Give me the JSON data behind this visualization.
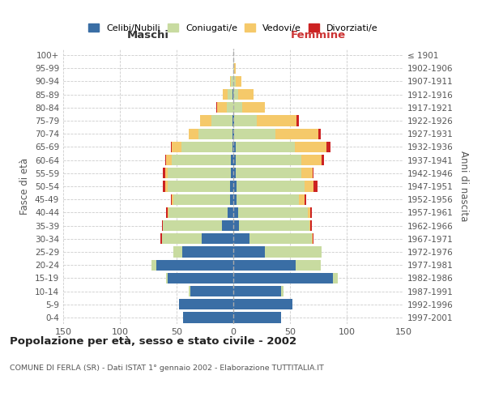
{
  "age_groups": [
    "0-4",
    "5-9",
    "10-14",
    "15-19",
    "20-24",
    "25-29",
    "30-34",
    "35-39",
    "40-44",
    "45-49",
    "50-54",
    "55-59",
    "60-64",
    "65-69",
    "70-74",
    "75-79",
    "80-84",
    "85-89",
    "90-94",
    "95-99",
    "100+"
  ],
  "birth_years": [
    "1997-2001",
    "1992-1996",
    "1987-1991",
    "1982-1986",
    "1977-1981",
    "1972-1976",
    "1967-1971",
    "1962-1966",
    "1957-1961",
    "1952-1956",
    "1947-1951",
    "1942-1946",
    "1937-1941",
    "1932-1936",
    "1927-1931",
    "1922-1926",
    "1917-1921",
    "1912-1916",
    "1907-1911",
    "1902-1906",
    "≤ 1901"
  ],
  "male_celibi": [
    44,
    48,
    38,
    58,
    68,
    45,
    28,
    10,
    5,
    3,
    3,
    2,
    2,
    1,
    1,
    1,
    0,
    1,
    0,
    0,
    0
  ],
  "male_coniugati": [
    0,
    0,
    1,
    1,
    4,
    8,
    35,
    52,
    52,
    50,
    55,
    56,
    52,
    45,
    30,
    18,
    6,
    4,
    2,
    0,
    0
  ],
  "male_vedovi": [
    0,
    0,
    0,
    0,
    0,
    0,
    0,
    0,
    1,
    1,
    2,
    2,
    5,
    8,
    8,
    10,
    8,
    4,
    1,
    0,
    0
  ],
  "male_divorziati": [
    0,
    0,
    0,
    0,
    0,
    0,
    1,
    1,
    1,
    1,
    2,
    2,
    1,
    1,
    0,
    0,
    1,
    0,
    0,
    0,
    0
  ],
  "female_nubili": [
    42,
    52,
    42,
    88,
    55,
    28,
    14,
    5,
    4,
    3,
    3,
    2,
    2,
    2,
    1,
    1,
    0,
    0,
    0,
    0,
    0
  ],
  "female_coniugate": [
    0,
    0,
    2,
    4,
    22,
    50,
    55,
    62,
    62,
    55,
    60,
    58,
    58,
    52,
    36,
    20,
    8,
    4,
    2,
    1,
    0
  ],
  "female_vedove": [
    0,
    0,
    0,
    0,
    0,
    0,
    1,
    1,
    2,
    5,
    8,
    10,
    18,
    28,
    38,
    35,
    20,
    14,
    5,
    1,
    0
  ],
  "female_divorziate": [
    0,
    0,
    0,
    0,
    0,
    0,
    1,
    1,
    1,
    1,
    3,
    1,
    2,
    4,
    2,
    2,
    0,
    0,
    0,
    0,
    0
  ],
  "colors": {
    "celibi_nubili": "#3a6ea5",
    "coniugati": "#c8dba0",
    "vedovi": "#f5c96a",
    "divorziati": "#cc2222"
  },
  "title": "Popolazione per età, sesso e stato civile - 2002",
  "subtitle": "COMUNE DI FERLA (SR) - Dati ISTAT 1° gennaio 2002 - Elaborazione TUTTITALIA.IT",
  "xlabel_left": "Maschi",
  "xlabel_right": "Femmine",
  "ylabel_left": "Fasce di età",
  "ylabel_right": "Anni di nascita",
  "xlim": 150,
  "background_color": "#ffffff",
  "grid_color": "#cccccc"
}
